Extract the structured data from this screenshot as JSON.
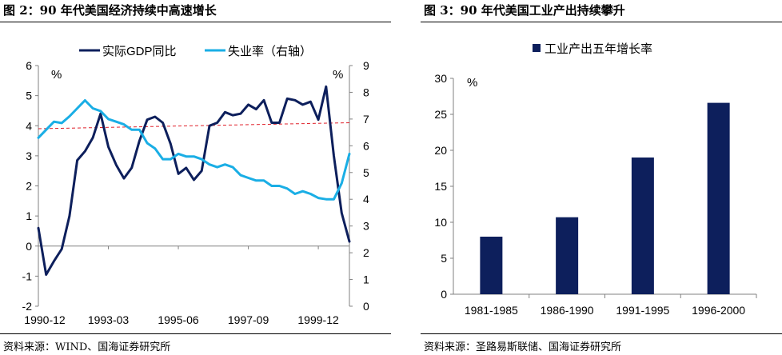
{
  "left": {
    "title": "图 2：90 年代美国经济持续中高速增长",
    "source": "资料来源：WIND、国海证券研究所",
    "chart_data": {
      "type": "line",
      "unit_left": "%",
      "unit_right": "%",
      "x_tick_labels": [
        "1990-12",
        "1993-03",
        "1995-06",
        "1997-09",
        "1999-12"
      ],
      "x_range": [
        "1990-12",
        "2000-12"
      ],
      "y_left_ticks": [
        "6",
        "5",
        "4",
        "3",
        "2",
        "1",
        "0",
        "-1",
        "-2"
      ],
      "y_left_range": [
        -2,
        6
      ],
      "y_right_ticks": [
        "9",
        "8",
        "7",
        "6",
        "5",
        "4",
        "3",
        "2",
        "1",
        "0"
      ],
      "y_right_range": [
        0,
        9
      ],
      "legend": [
        "实际GDP同比",
        "失业率（右轴）"
      ],
      "legend_position": "top",
      "reference_line": {
        "axis": "left",
        "from": 3.9,
        "to": 4.1,
        "color": "#e0202a",
        "style": "dashed"
      },
      "series": [
        {
          "name": "实际GDP同比",
          "axis": "left",
          "color": "#0d1f5c",
          "x": [
            "1990-12",
            "1991-03",
            "1991-06",
            "1991-09",
            "1991-12",
            "1992-03",
            "1992-06",
            "1992-09",
            "1992-12",
            "1993-03",
            "1993-06",
            "1993-09",
            "1993-12",
            "1994-03",
            "1994-06",
            "1994-09",
            "1994-12",
            "1995-03",
            "1995-06",
            "1995-09",
            "1995-12",
            "1996-03",
            "1996-06",
            "1996-09",
            "1996-12",
            "1997-03",
            "1997-06",
            "1997-09",
            "1997-12",
            "1998-03",
            "1998-06",
            "1998-09",
            "1998-12",
            "1999-03",
            "1999-06",
            "1999-09",
            "1999-12",
            "2000-03",
            "2000-06",
            "2000-09",
            "2000-12"
          ],
          "values": [
            0.6,
            -0.95,
            -0.5,
            -0.1,
            1.0,
            2.85,
            3.15,
            3.6,
            4.4,
            3.3,
            2.7,
            2.25,
            2.6,
            3.5,
            4.2,
            4.3,
            4.1,
            3.4,
            2.4,
            2.6,
            2.2,
            2.5,
            4.0,
            4.1,
            4.45,
            4.35,
            4.4,
            4.7,
            4.55,
            4.85,
            4.1,
            4.1,
            4.9,
            4.85,
            4.7,
            4.8,
            4.2,
            5.3,
            3.0,
            1.1,
            0.15
          ]
        },
        {
          "name": "失业率（右轴）",
          "axis": "right",
          "color": "#1aaee5",
          "x": [
            "1990-12",
            "1991-03",
            "1991-06",
            "1991-09",
            "1991-12",
            "1992-03",
            "1992-06",
            "1992-09",
            "1992-12",
            "1993-03",
            "1993-06",
            "1993-09",
            "1993-12",
            "1994-03",
            "1994-06",
            "1994-09",
            "1994-12",
            "1995-03",
            "1995-06",
            "1995-09",
            "1995-12",
            "1996-03",
            "1996-06",
            "1996-09",
            "1996-12",
            "1997-03",
            "1997-06",
            "1997-09",
            "1997-12",
            "1998-03",
            "1998-06",
            "1998-09",
            "1998-12",
            "1999-03",
            "1999-06",
            "1999-09",
            "1999-12",
            "2000-03",
            "2000-06",
            "2000-09",
            "2000-12"
          ],
          "values": [
            6.3,
            6.6,
            6.9,
            6.85,
            7.1,
            7.4,
            7.7,
            7.4,
            7.3,
            7.0,
            6.9,
            6.8,
            6.6,
            6.6,
            6.1,
            5.9,
            5.5,
            5.5,
            5.7,
            5.6,
            5.6,
            5.5,
            5.3,
            5.2,
            5.3,
            5.2,
            4.9,
            4.8,
            4.7,
            4.7,
            4.5,
            4.5,
            4.4,
            4.2,
            4.3,
            4.2,
            4.05,
            4.0,
            4.0,
            4.6,
            5.7
          ]
        }
      ]
    }
  },
  "right": {
    "title": "图 3：90 年代美国工业产出持续攀升",
    "source": "资料来源：圣路易斯联储、国海证券研究所",
    "chart_data": {
      "type": "bar",
      "unit": "%",
      "categories": [
        "1981-1985",
        "1986-1990",
        "1991-1995",
        "1996-2000"
      ],
      "series": [
        {
          "name": "工业产出五年增长率",
          "color": "#0d1f5c",
          "values": [
            8.0,
            10.7,
            19.0,
            26.6
          ]
        }
      ],
      "y_ticks": [
        "30",
        "25",
        "20",
        "15",
        "10",
        "5",
        "0"
      ],
      "ylim": [
        0,
        30
      ],
      "legend_position": "top-left"
    }
  }
}
